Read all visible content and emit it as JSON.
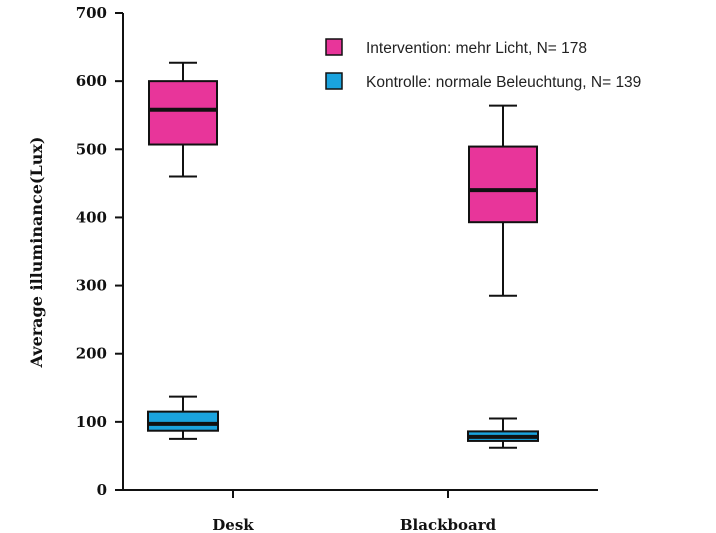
{
  "chart_data": {
    "type": "box",
    "title": "",
    "xlabel": "",
    "ylabel": "Average illuminance(Lux)",
    "categories": [
      "Desk",
      "Blackboard"
    ],
    "ylim": [
      0,
      700
    ],
    "yticks": [
      0,
      100,
      200,
      300,
      400,
      500,
      600,
      700
    ],
    "grid": false,
    "legend_position": "top-right",
    "series": [
      {
        "name": "Intervention: mehr Licht, N= 178",
        "color": "#e8359a",
        "boxes": [
          {
            "category": "Desk",
            "min": 460,
            "q1": 507,
            "median": 558,
            "q3": 600,
            "max": 627
          },
          {
            "category": "Blackboard",
            "min": 285,
            "q1": 393,
            "median": 440,
            "q3": 504,
            "max": 564
          }
        ]
      },
      {
        "name": "Kontrolle: normale Beleuchtung, N= 139",
        "color": "#1aa3de",
        "boxes": [
          {
            "category": "Desk",
            "min": 75,
            "q1": 87,
            "median": 97,
            "q3": 115,
            "max": 137
          },
          {
            "category": "Blackboard",
            "min": 62,
            "q1": 72,
            "median": 78,
            "q3": 86,
            "max": 105
          }
        ]
      }
    ]
  }
}
